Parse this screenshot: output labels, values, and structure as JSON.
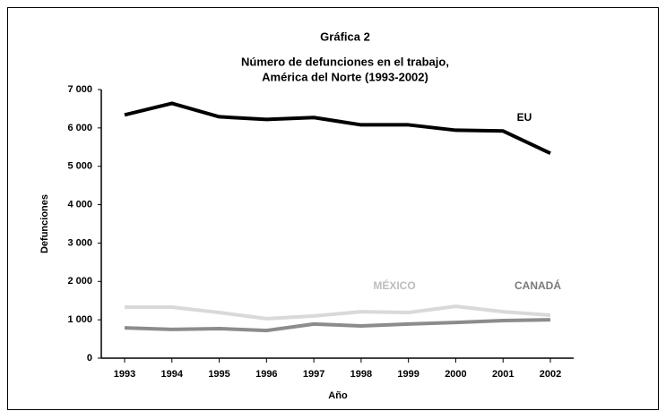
{
  "chart_data": {
    "type": "line",
    "title": "Gráfica 2",
    "subtitle": [
      "Número de defunciones en el trabajo,",
      "América del Norte (1993-2002)"
    ],
    "y_label": "Defunciones",
    "x_label": "Año",
    "categories": [
      "1993",
      "1994",
      "1995",
      "1996",
      "1997",
      "1998",
      "1999",
      "2000",
      "2001",
      "2002"
    ],
    "series": [
      {
        "name": "EU",
        "color": "#000000",
        "values": [
          6340,
          6640,
          6290,
          6220,
          6270,
          6080,
          6080,
          5940,
          5920,
          5340
        ]
      },
      {
        "name": "MÉXICO",
        "color": "#d9d9d9",
        "values": [
          1330,
          1330,
          1190,
          1030,
          1100,
          1210,
          1190,
          1350,
          1210,
          1120
        ]
      },
      {
        "name": "CANADÁ",
        "color": "#8c8c8c",
        "values": [
          790,
          750,
          770,
          720,
          890,
          840,
          890,
          930,
          980,
          1000
        ]
      }
    ],
    "ylim": [
      0,
      7000
    ],
    "yticks": [
      0,
      {
        "value": 1000,
        "label": "1 000"
      },
      {
        "value": 2000,
        "label": "2 000"
      },
      {
        "value": 3000,
        "label": "3 000"
      },
      {
        "value": 4000,
        "label": "4 000"
      },
      {
        "value": 5000,
        "label": "5 000"
      },
      {
        "value": 6000,
        "label": "6 000"
      },
      {
        "value": 7000,
        "label": "7 000"
      }
    ],
    "grid": false
  }
}
